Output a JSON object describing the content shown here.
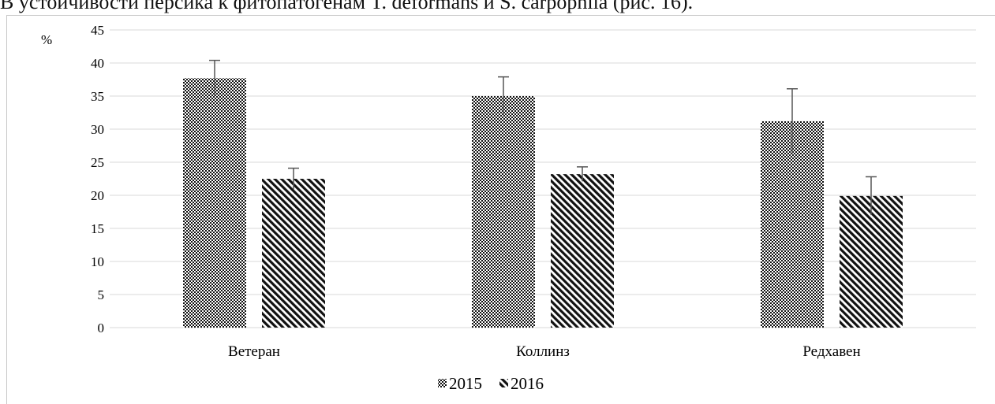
{
  "header_text": "в устой...(fragment cut off at top)",
  "chart_data": {
    "type": "bar",
    "title": "",
    "xlabel": "",
    "ylabel": "%",
    "ylim": [
      0,
      45
    ],
    "yticks": [
      0,
      5,
      10,
      15,
      20,
      25,
      30,
      35,
      40,
      45
    ],
    "categories": [
      "Ветеран",
      "Коллинз",
      "Редхавен"
    ],
    "series": [
      {
        "name": "2015",
        "values": [
          37.7,
          35.0,
          31.2
        ],
        "errors": [
          2.7,
          2.9,
          4.9
        ],
        "pattern": "checker"
      },
      {
        "name": "2016",
        "values": [
          22.5,
          23.2,
          19.9
        ],
        "errors": [
          1.6,
          1.1,
          2.9
        ],
        "pattern": "diagonal"
      }
    ],
    "grid": true,
    "legend_position": "bottom",
    "colors": {
      "bar": "#000000",
      "grid": "#d9d9d9",
      "error": "#555555"
    }
  }
}
